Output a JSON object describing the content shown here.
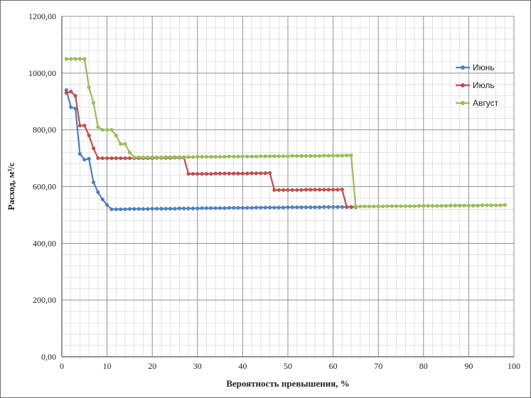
{
  "chart_data": {
    "type": "line",
    "title": "",
    "xlabel": "Вероятность превышения, %",
    "ylabel": "Расход, м³/с",
    "xlim": [
      0,
      100
    ],
    "ylim": [
      0,
      1200
    ],
    "x_ticks": [
      "0",
      "10",
      "20",
      "30",
      "40",
      "50",
      "60",
      "70",
      "80",
      "90",
      "100"
    ],
    "y_ticks": [
      "0,00",
      "200,00",
      "400,00",
      "600,00",
      "800,00",
      "1000,00",
      "1200,00"
    ],
    "grid": true,
    "legend_position": "right",
    "series": [
      {
        "name": "Июнь",
        "color": "#4f81bd",
        "x": [
          1,
          2,
          3,
          4,
          5,
          6,
          7,
          8,
          9,
          10,
          11,
          12,
          13,
          14,
          15,
          16,
          17,
          18,
          19,
          20,
          21,
          22,
          23,
          24,
          25,
          26,
          27,
          28,
          29,
          30,
          31,
          32,
          33,
          34,
          35,
          36,
          37,
          38,
          39,
          40,
          41,
          42,
          43,
          44,
          45,
          46,
          47,
          48,
          49,
          50,
          51,
          52,
          53,
          54,
          55,
          56,
          57,
          58,
          59,
          60,
          61,
          62,
          63,
          64,
          65
        ],
        "y": [
          940,
          880,
          875,
          715,
          695,
          698,
          615,
          580,
          555,
          535,
          520,
          520,
          520,
          520,
          521,
          521,
          521,
          521,
          521,
          522,
          522,
          522,
          522,
          522,
          522,
          523,
          523,
          523,
          523,
          523,
          524,
          524,
          524,
          524,
          524,
          524,
          525,
          525,
          525,
          525,
          525,
          525,
          526,
          526,
          526,
          526,
          526,
          526,
          526,
          527,
          527,
          527,
          527,
          527,
          527,
          527,
          527,
          528,
          528,
          528,
          528,
          528,
          528,
          528,
          528
        ]
      },
      {
        "name": "Июль",
        "color": "#c0504d",
        "x": [
          1,
          2,
          3,
          4,
          5,
          6,
          7,
          8,
          9,
          10,
          11,
          12,
          13,
          14,
          15,
          16,
          17,
          18,
          19,
          20,
          21,
          22,
          23,
          24,
          25,
          26,
          27,
          28,
          29,
          30,
          31,
          32,
          33,
          34,
          35,
          36,
          37,
          38,
          39,
          40,
          41,
          42,
          43,
          44,
          45,
          46,
          47,
          48,
          49,
          50,
          51,
          52,
          53,
          54,
          55,
          56,
          57,
          58,
          59,
          60,
          61,
          62,
          63,
          64,
          65
        ],
        "y": [
          930,
          935,
          920,
          815,
          815,
          780,
          735,
          700,
          700,
          700,
          700,
          700,
          700,
          700,
          700,
          700,
          700,
          700,
          700,
          700,
          701,
          701,
          701,
          701,
          702,
          702,
          702,
          645,
          645,
          645,
          645,
          645,
          645,
          646,
          646,
          646,
          646,
          646,
          646,
          646,
          646,
          647,
          647,
          647,
          647,
          648,
          588,
          588,
          588,
          588,
          588,
          588,
          588,
          589,
          589,
          589,
          589,
          589,
          589,
          589,
          589,
          590,
          528,
          528,
          528
        ]
      },
      {
        "name": "Август",
        "color": "#9bbb59",
        "x": [
          1,
          2,
          3,
          4,
          5,
          6,
          7,
          8,
          9,
          10,
          11,
          12,
          13,
          14,
          15,
          16,
          17,
          18,
          19,
          20,
          21,
          22,
          23,
          24,
          25,
          26,
          27,
          28,
          29,
          30,
          31,
          32,
          33,
          34,
          35,
          36,
          37,
          38,
          39,
          40,
          41,
          42,
          43,
          44,
          45,
          46,
          47,
          48,
          49,
          50,
          51,
          52,
          53,
          54,
          55,
          56,
          57,
          58,
          59,
          60,
          61,
          62,
          63,
          64,
          65,
          66,
          67,
          68,
          69,
          70,
          71,
          72,
          73,
          74,
          75,
          76,
          77,
          78,
          79,
          80,
          81,
          82,
          83,
          84,
          85,
          86,
          87,
          88,
          89,
          90,
          91,
          92,
          93,
          94,
          95,
          96,
          97,
          98
        ],
        "y": [
          1050,
          1050,
          1050,
          1050,
          1050,
          950,
          895,
          810,
          800,
          800,
          800,
          780,
          750,
          750,
          720,
          703,
          703,
          703,
          703,
          703,
          703,
          703,
          704,
          704,
          704,
          704,
          704,
          704,
          704,
          705,
          705,
          705,
          705,
          705,
          705,
          705,
          706,
          706,
          706,
          706,
          706,
          706,
          706,
          707,
          707,
          707,
          707,
          707,
          707,
          707,
          708,
          708,
          708,
          708,
          708,
          708,
          708,
          709,
          709,
          709,
          709,
          709,
          710,
          710,
          530,
          530,
          530,
          530,
          530,
          530,
          530,
          531,
          531,
          531,
          531,
          531,
          531,
          531,
          532,
          532,
          532,
          532,
          532,
          532,
          532,
          533,
          533,
          533,
          533,
          533,
          533,
          533,
          534,
          534,
          534,
          534,
          534,
          535
        ]
      }
    ]
  }
}
